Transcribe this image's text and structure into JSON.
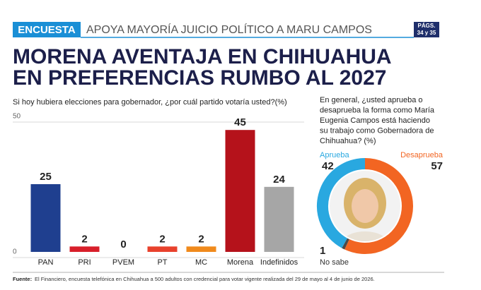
{
  "header": {
    "tag": "ENCUESTA",
    "kicker": "APOYA MAYORÍA JUICIO POLÍTICO A MARU CAMPOS",
    "pages": [
      "PÁGS.",
      "34 y 35"
    ],
    "title": [
      "MORENA AVENTAJA EN CHIHUAHUA",
      "EN PREFERENCIAS RUMBO AL 2027"
    ]
  },
  "chart_data": [
    {
      "type": "bar",
      "title": "Si hoy hubiera elecciones para gobernador, ¿por cuál partido votaría usted?(%)",
      "categories": [
        "PAN",
        "PRI",
        "PVEM",
        "PT",
        "MC",
        "Morena",
        "Indefinidos"
      ],
      "values": [
        25,
        2,
        0,
        2,
        2,
        45,
        24
      ],
      "colors": [
        "#1f3f8f",
        "#d81f2a",
        "#3aa646",
        "#e8412c",
        "#f08a1c",
        "#b5121b",
        "#a6a6a6"
      ],
      "ylim": [
        0,
        50
      ],
      "yticks": [
        0,
        50
      ],
      "grid": true
    },
    {
      "type": "donut",
      "title": "En general, ¿usted aprueba o desaprueba la forma como María Eugenia Campos está haciendo su trabajo como Gobernadora de Chihuahua? (%)",
      "categories": [
        "Aprueba",
        "Desaprueba",
        "No sabe"
      ],
      "values": [
        42,
        57,
        1
      ],
      "colors": [
        "#29a8e0",
        "#f26522",
        "#4a4a4a"
      ]
    }
  ],
  "footer": {
    "label": "Fuente:",
    "text": "El Financiero, encuesta telefónica en Chihuahua a 500 adultos con credencial para votar vigente realizada del 29 de mayo al 4 de junio de 2026."
  }
}
